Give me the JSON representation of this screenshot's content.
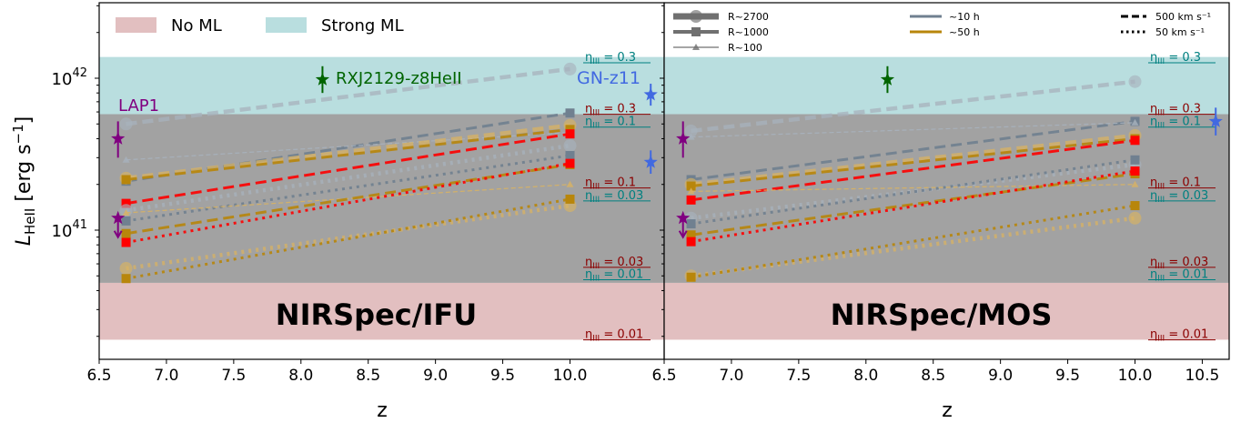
{
  "colors": {
    "no_ml": "#e2bfc0",
    "strong_ml": "#b9dedf",
    "gray_band": "#a2a2a2",
    "gray10h": "#708090",
    "gold50h": "#b8860b",
    "red": "#ff0000",
    "purple": "#800080",
    "green": "#006400",
    "blue": "#4169e1",
    "teal": "#008080",
    "darkred": "#8b0000",
    "lightgray": "#a8b2bd"
  },
  "axes": {
    "ylabel": "L_HeII [erg s^-1]",
    "xlabel": "z",
    "ytick_labels": [
      "10^41",
      "10^42"
    ],
    "ylim": [
      1.75e+40,
      3.2e+42
    ],
    "scale": "log"
  },
  "chart_data": [
    {
      "type": "line",
      "panel": "NIRSpec/IFU",
      "title": "NIRSpec/IFU",
      "xlim": [
        6.5,
        10.7
      ],
      "xtick_labels": [
        "6.5",
        "7.0",
        "7.5",
        "8.0",
        "8.5",
        "9.0",
        "9.5",
        "10.0"
      ],
      "legend": {
        "placement": "top-left",
        "entries": [
          {
            "label": "No ML",
            "color": "#e2bfc0"
          },
          {
            "label": "Strong ML",
            "color": "#b9dedf"
          }
        ]
      },
      "bands": [
        {
          "name": "No ML",
          "y": [
            1.9e+40,
            4.5e+40
          ],
          "color": "#e2bfc0"
        },
        {
          "name": "gray",
          "y": [
            4.5e+40,
            5.8e+41
          ],
          "color": "#a2a2a2"
        },
        {
          "name": "Strong ML",
          "y": [
            5.8e+41,
            1.38e+42
          ],
          "color": "#b9dedf"
        }
      ],
      "eta_labels": [
        {
          "text": "η_III = 0.3",
          "y": 1.3e+42,
          "color": "#008080"
        },
        {
          "text": "η_III = 0.3",
          "y": 5.95e+41,
          "color": "#8b0000"
        },
        {
          "text": "η_III = 0.1",
          "y": 4.9e+41,
          "color": "#008080"
        },
        {
          "text": "η_III = 0.1",
          "y": 1.95e+41,
          "color": "#8b0000"
        },
        {
          "text": "η_III = 0.03",
          "y": 1.6e+41,
          "color": "#008080"
        },
        {
          "text": "η_III = 0.03",
          "y": 5.85e+40,
          "color": "#8b0000"
        },
        {
          "text": "η_III = 0.01",
          "y": 4.85e+40,
          "color": "#008080"
        },
        {
          "text": "η_III = 0.01",
          "y": 1.95e+40,
          "color": "#8b0000"
        }
      ],
      "series": [
        {
          "x": [
            6.7,
            10.0
          ],
          "y": [
            5e+41,
            1.15e+42
          ],
          "color": "#a8b2bd",
          "style": "dashed",
          "res": "R~2700"
        },
        {
          "x": [
            6.7,
            10.0
          ],
          "y": [
            2.1e+41,
            5.9e+41
          ],
          "color": "#708090",
          "style": "dashed",
          "res": "R~1000"
        },
        {
          "x": [
            6.7,
            10.0
          ],
          "y": [
            2.9e+41,
            4.4e+41
          ],
          "color": "#a8b2bd",
          "style": "dashed",
          "res": "R~100"
        },
        {
          "x": [
            6.7,
            10.0
          ],
          "y": [
            2.2e+41,
            4.9e+41
          ],
          "color": "#d9b363",
          "style": "dashed",
          "res": "R~2700"
        },
        {
          "x": [
            6.7,
            10.0
          ],
          "y": [
            2.15e+41,
            4.6e+41
          ],
          "color": "#b8860b",
          "style": "dashed",
          "res": "R~1000"
        },
        {
          "x": [
            6.7,
            10.0
          ],
          "y": [
            1.5e+41,
            4.3e+41
          ],
          "color": "#ff0000",
          "style": "dashed",
          "res": "R~1000"
        },
        {
          "x": [
            6.7,
            10.0
          ],
          "y": [
            1.35e+41,
            3.6e+41
          ],
          "color": "#a8b2bd",
          "style": "dotted",
          "res": "R~2700"
        },
        {
          "x": [
            6.7,
            10.0
          ],
          "y": [
            1.15e+41,
            3.1e+41
          ],
          "color": "#708090",
          "style": "dotted",
          "res": "R~1000"
        },
        {
          "x": [
            6.7,
            10.0
          ],
          "y": [
            1.3e+41,
            2e+41
          ],
          "color": "#d9b363",
          "style": "dashed",
          "res": "R~100"
        },
        {
          "x": [
            6.7,
            10.0
          ],
          "y": [
            9.5e+40,
            2.7e+41
          ],
          "color": "#b8860b",
          "style": "dashed",
          "res": "R~1000"
        },
        {
          "x": [
            6.7,
            10.0
          ],
          "y": [
            8.3e+40,
            2.75e+41
          ],
          "color": "#ff0000",
          "style": "dotted",
          "res": "R~1000"
        },
        {
          "x": [
            6.7,
            10.0
          ],
          "y": [
            5.6e+40,
            1.45e+41
          ],
          "color": "#d9b363",
          "style": "dotted",
          "res": "R~2700"
        },
        {
          "x": [
            6.7,
            10.0
          ],
          "y": [
            4.8e+40,
            1.6e+41
          ],
          "color": "#b8860b",
          "style": "dotted",
          "res": "R~1000"
        }
      ],
      "observations": [
        {
          "name": "LAP1",
          "x": 6.64,
          "y": 4e+41,
          "yerr": [
            3e+41,
            5.2e+41
          ],
          "color": "#800080",
          "upper_limit": false
        },
        {
          "name": "",
          "x": 6.64,
          "y": 1.2e+41,
          "color": "#800080",
          "upper_limit": true
        },
        {
          "name": "RXJ2129-z8HeII",
          "x": 8.16,
          "y": 9.8e+41,
          "yerr": [
            8e+41,
            1.2e+42
          ],
          "color": "#006400",
          "upper_limit": false
        },
        {
          "name": "GN-z11",
          "x": 10.6,
          "y": 7.8e+41,
          "yerr": [
            6.6e+41,
            9.2e+41
          ],
          "color": "#4169e1",
          "upper_limit": false
        },
        {
          "name": "",
          "x": 10.6,
          "y": 2.8e+41,
          "yerr": [
            2.35e+41,
            3.35e+41
          ],
          "color": "#4169e1",
          "upper_limit": false
        }
      ],
      "obs_labels": [
        {
          "text": "LAP1",
          "color": "#800080"
        },
        {
          "text": "RXJ2129-z8HeII",
          "color": "#006400"
        },
        {
          "text": "GN-z11",
          "color": "#4169e1"
        }
      ]
    },
    {
      "type": "line",
      "panel": "NIRSpec/MOS",
      "title": "NIRSpec/MOS",
      "xlim": [
        6.5,
        10.7
      ],
      "xtick_labels": [
        "6.5",
        "7.0",
        "7.5",
        "8.0",
        "8.5",
        "9.0",
        "9.5",
        "10.0",
        "10.5"
      ],
      "legend": {
        "placement": "top",
        "resolution": [
          {
            "label": "R~2700",
            "marker": "circle"
          },
          {
            "label": "R~1000",
            "marker": "square"
          },
          {
            "label": "R~100",
            "marker": "triangle"
          }
        ],
        "time": [
          {
            "label": "~10 h",
            "color": "#708090"
          },
          {
            "label": "~50 h",
            "color": "#b8860b"
          }
        ],
        "velocity": [
          {
            "label": "500 km s⁻¹",
            "style": "dashed"
          },
          {
            "label": "50 km s⁻¹",
            "style": "dotted"
          }
        ]
      },
      "bands": [
        {
          "name": "No ML",
          "y": [
            1.9e+40,
            4.5e+40
          ],
          "color": "#e2bfc0"
        },
        {
          "name": "gray",
          "y": [
            4.5e+40,
            5.8e+41
          ],
          "color": "#a2a2a2"
        },
        {
          "name": "Strong ML",
          "y": [
            5.8e+41,
            1.38e+42
          ],
          "color": "#b9dedf"
        }
      ],
      "eta_labels": [
        {
          "text": "η_III = 0.3",
          "y": 1.3e+42,
          "color": "#008080"
        },
        {
          "text": "η_III = 0.3",
          "y": 5.95e+41,
          "color": "#8b0000"
        },
        {
          "text": "η_III = 0.1",
          "y": 4.9e+41,
          "color": "#008080"
        },
        {
          "text": "η_III = 0.1",
          "y": 1.95e+41,
          "color": "#8b0000"
        },
        {
          "text": "η_III = 0.03",
          "y": 1.6e+41,
          "color": "#008080"
        },
        {
          "text": "η_III = 0.03",
          "y": 5.85e+40,
          "color": "#8b0000"
        },
        {
          "text": "η_III = 0.01",
          "y": 4.85e+40,
          "color": "#008080"
        },
        {
          "text": "η_III = 0.01",
          "y": 1.95e+40,
          "color": "#8b0000"
        }
      ],
      "series": [
        {
          "x": [
            6.7,
            10.0
          ],
          "y": [
            4.5e+41,
            9.5e+41
          ],
          "color": "#a8b2bd",
          "style": "dashed",
          "res": "R~2700"
        },
        {
          "x": [
            6.7,
            10.0
          ],
          "y": [
            2.15e+41,
            5.2e+41
          ],
          "color": "#708090",
          "style": "dashed",
          "res": "R~1000"
        },
        {
          "x": [
            6.7,
            10.0
          ],
          "y": [
            4.1e+41,
            5.1e+41
          ],
          "color": "#a8b2bd",
          "style": "dashed",
          "res": "R~100"
        },
        {
          "x": [
            6.7,
            10.0
          ],
          "y": [
            2e+41,
            4.2e+41
          ],
          "color": "#d9b363",
          "style": "dashed",
          "res": "R~2700"
        },
        {
          "x": [
            6.7,
            10.0
          ],
          "y": [
            1.95e+41,
            4e+41
          ],
          "color": "#b8860b",
          "style": "dashed",
          "res": "R~1000"
        },
        {
          "x": [
            6.7,
            10.0
          ],
          "y": [
            1.58e+41,
            3.9e+41
          ],
          "color": "#ff0000",
          "style": "dashed",
          "res": "R~1000"
        },
        {
          "x": [
            6.7,
            10.0
          ],
          "y": [
            1.2e+41,
            2.7e+41
          ],
          "color": "#a8b2bd",
          "style": "dotted",
          "res": "R~2700"
        },
        {
          "x": [
            6.7,
            10.0
          ],
          "y": [
            1.1e+41,
            2.9e+41
          ],
          "color": "#708090",
          "style": "dotted",
          "res": "R~1000"
        },
        {
          "x": [
            6.7,
            10.0
          ],
          "y": [
            1.8e+41,
            2e+41
          ],
          "color": "#d9b363",
          "style": "dashed",
          "res": "R~100"
        },
        {
          "x": [
            6.7,
            10.0
          ],
          "y": [
            9.3e+40,
            2.35e+41
          ],
          "color": "#b8860b",
          "style": "dashed",
          "res": "R~1000"
        },
        {
          "x": [
            6.7,
            10.0
          ],
          "y": [
            8.4e+40,
            2.45e+41
          ],
          "color": "#ff0000",
          "style": "dotted",
          "res": "R~1000"
        },
        {
          "x": [
            6.7,
            10.0
          ],
          "y": [
            5e+40,
            1.2e+41
          ],
          "color": "#d9b363",
          "style": "dotted",
          "res": "R~2700"
        },
        {
          "x": [
            6.7,
            10.0
          ],
          "y": [
            4.9e+40,
            1.45e+41
          ],
          "color": "#b8860b",
          "style": "dotted",
          "res": "R~1000"
        }
      ],
      "observations": [
        {
          "name": "",
          "x": 6.64,
          "y": 4e+41,
          "yerr": [
            3e+41,
            5.2e+41
          ],
          "color": "#800080",
          "upper_limit": false
        },
        {
          "name": "",
          "x": 6.64,
          "y": 1.2e+41,
          "color": "#800080",
          "upper_limit": true
        },
        {
          "name": "",
          "x": 8.16,
          "y": 9.8e+41,
          "yerr": [
            8e+41,
            1.2e+42
          ],
          "color": "#006400",
          "upper_limit": false
        },
        {
          "name": "",
          "x": 10.6,
          "y": 5.2e+41,
          "yerr": [
            4.2e+41,
            6.4e+41
          ],
          "color": "#4169e1",
          "upper_limit": false
        }
      ],
      "obs_labels": []
    }
  ]
}
